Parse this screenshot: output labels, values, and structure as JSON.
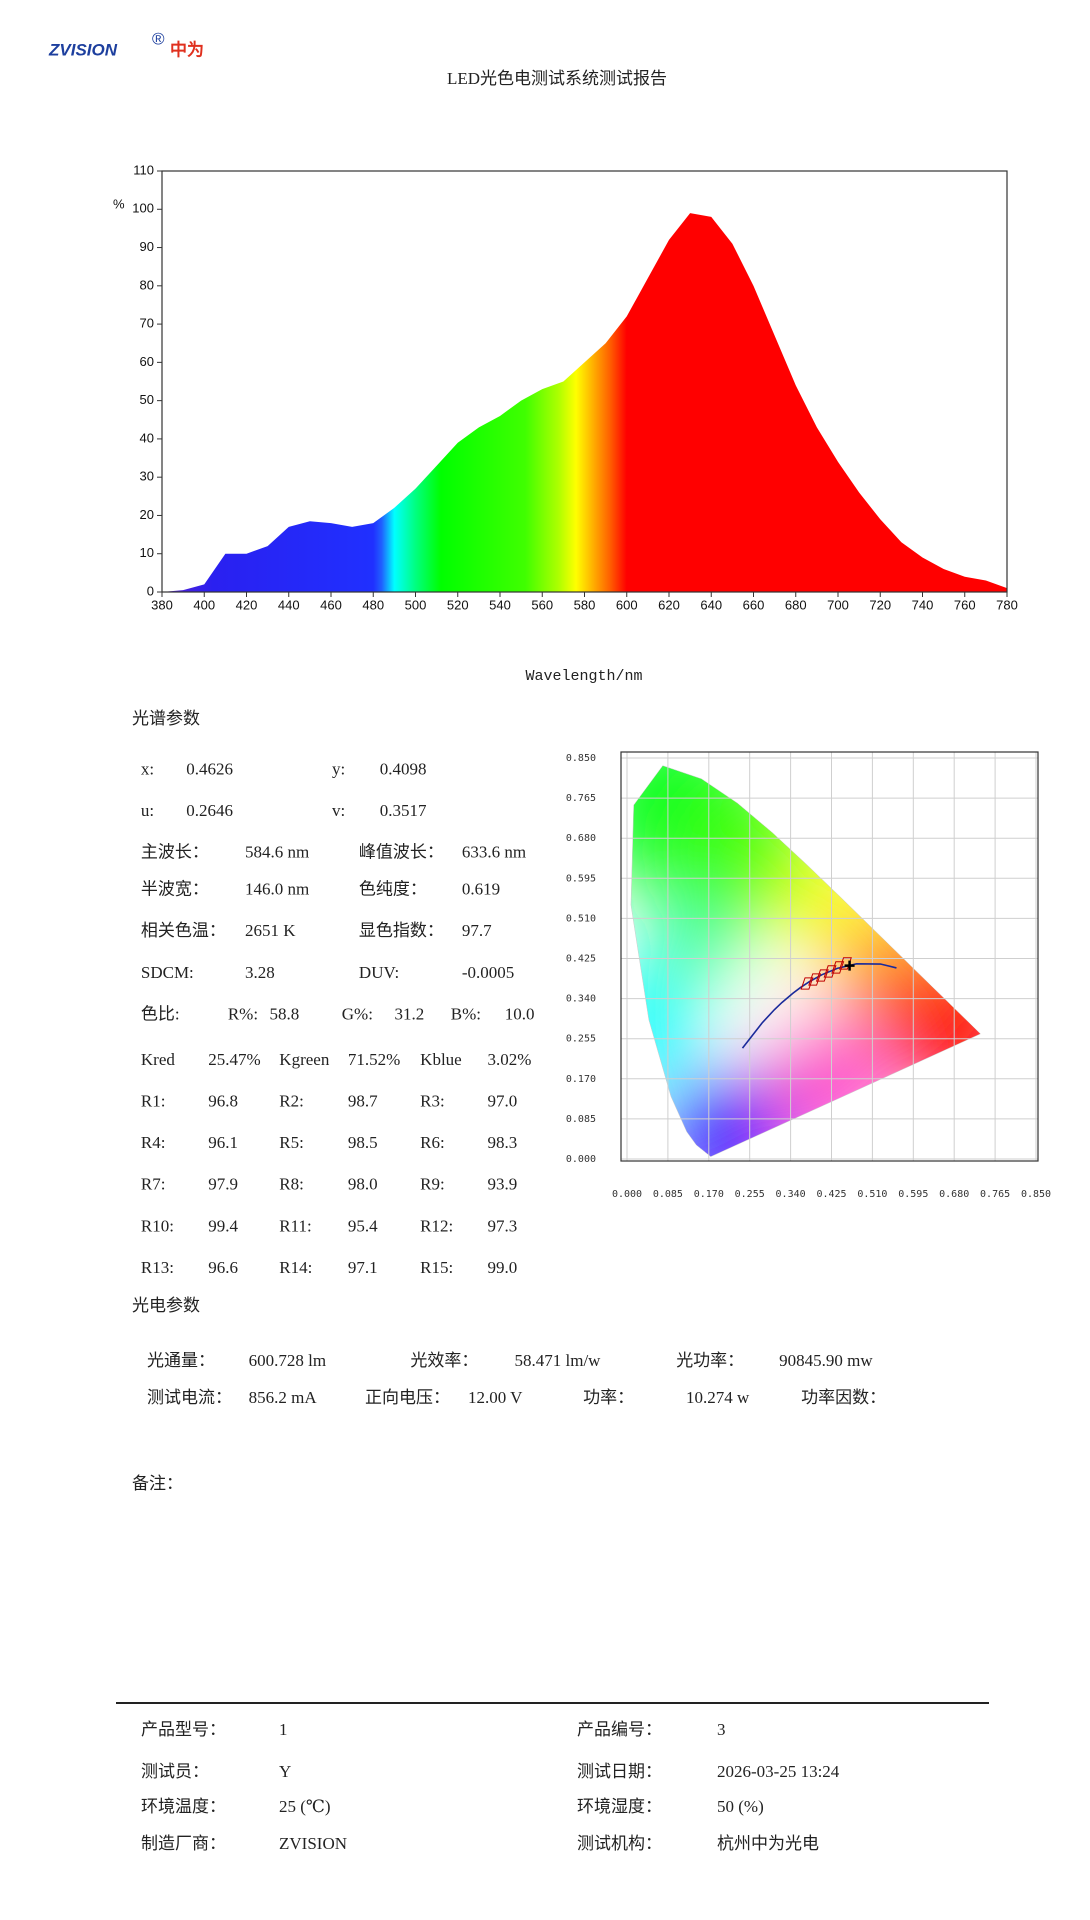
{
  "header": {
    "logo": "ZVISION",
    "trademark": "®",
    "logo_cn": "中为",
    "title": "LED光色电测试系统测试报告"
  },
  "chart_data": [
    {
      "type": "area",
      "ylabel": "%",
      "xlabel": "Wavelength/nm",
      "x": [
        380,
        390,
        400,
        410,
        420,
        430,
        440,
        450,
        460,
        470,
        480,
        490,
        500,
        510,
        520,
        530,
        540,
        550,
        560,
        570,
        580,
        590,
        600,
        610,
        620,
        630,
        640,
        650,
        660,
        670,
        680,
        690,
        700,
        710,
        720,
        730,
        740,
        750,
        760,
        770,
        780
      ],
      "values": [
        0,
        0.5,
        2,
        10,
        10,
        12,
        17,
        18.5,
        18,
        17,
        18,
        22,
        27,
        33,
        39,
        43,
        46,
        50,
        53,
        55,
        60,
        65,
        72,
        82,
        92,
        99,
        98,
        91,
        80,
        67,
        54,
        43,
        34,
        26,
        19,
        13,
        9,
        6,
        4,
        3,
        1
      ],
      "xlim": [
        380,
        780
      ],
      "ylim": [
        0,
        110
      ],
      "xticks": [
        380,
        400,
        420,
        440,
        460,
        480,
        500,
        520,
        540,
        560,
        580,
        600,
        620,
        640,
        660,
        680,
        700,
        720,
        740,
        760,
        780
      ],
      "yticks": [
        0,
        10,
        20,
        30,
        40,
        50,
        60,
        70,
        80,
        90,
        100,
        110
      ],
      "grid": false
    },
    {
      "type": "scatter",
      "x": [
        0.4626
      ],
      "values": [
        0.4098
      ],
      "color": "#000000",
      "grid": true,
      "xlim": [
        0,
        0.85
      ],
      "ylim": [
        0,
        0.85
      ],
      "xticks": [
        {
          "value": 0,
          "label": "0.000"
        },
        {
          "value": 0.085,
          "label": "0.085"
        },
        {
          "value": 0.17,
          "label": "0.170"
        },
        {
          "value": 0.255,
          "label": "0.255"
        },
        {
          "value": 0.34,
          "label": "0.340"
        },
        {
          "value": 0.425,
          "label": "0.425"
        },
        {
          "value": 0.51,
          "label": "0.510"
        },
        {
          "value": 0.595,
          "label": "0.595"
        },
        {
          "value": 0.68,
          "label": "0.680"
        },
        {
          "value": 0.765,
          "label": "0.765"
        },
        {
          "value": 0.85,
          "label": "0.850"
        }
      ],
      "yticks": [
        {
          "value": 0,
          "label": "0.000"
        },
        {
          "value": 0.085,
          "label": "0.085"
        },
        {
          "value": 0.17,
          "label": "0.170"
        },
        {
          "value": 0.255,
          "label": "0.255"
        },
        {
          "value": 0.34,
          "label": "0.340"
        },
        {
          "value": 0.425,
          "label": "0.425"
        },
        {
          "value": 0.51,
          "label": "0.510"
        },
        {
          "value": 0.595,
          "label": "0.595"
        },
        {
          "value": 0.68,
          "label": "0.680"
        },
        {
          "value": 0.765,
          "label": "0.765"
        },
        {
          "value": 0.85,
          "label": "0.850"
        }
      ]
    }
  ],
  "spectral": {
    "title": "光谱参数",
    "rows": [
      [
        "x:",
        "0.4626",
        "y:",
        "0.4098"
      ],
      [
        "u:",
        "0.2646",
        "v:",
        "0.3517"
      ],
      [
        "主波长：",
        "584.6 nm",
        "峰值波长：",
        "633.6 nm"
      ],
      [
        "半波宽：",
        "146.0 nm",
        "色纯度：",
        "0.619"
      ],
      [
        "相关色温：",
        "2651 K",
        "显色指数：",
        "97.7"
      ],
      [
        "SDCM:",
        "3.28",
        "DUV:",
        "-0.0005"
      ],
      [
        "色比:",
        "R%:",
        "58.8",
        "G%:",
        "31.2",
        "B%:",
        "10.0"
      ],
      [
        "Kred",
        "25.47%",
        "Kgreen",
        "71.52%",
        "Kblue",
        "3.02%"
      ],
      [
        "R1:",
        "96.8",
        "R2:",
        "98.7",
        "R3:",
        "97.0"
      ],
      [
        "R4:",
        "96.1",
        "R5:",
        "98.5",
        "R6:",
        "98.3"
      ],
      [
        "R7:",
        "97.9",
        "R8:",
        "98.0",
        "R9:",
        "93.9"
      ],
      [
        "R10:",
        "99.4",
        "R11:",
        "95.4",
        "R12:",
        "97.3"
      ],
      [
        "R13:",
        "96.6",
        "R14:",
        "97.1",
        "R15:",
        "99.0"
      ]
    ]
  },
  "photoelectric": {
    "title": "光电参数",
    "rows": [
      [
        "光通量：",
        "600.728 lm",
        "光效率：",
        "58.471 lm/w",
        "光功率：",
        "90845.90 mw"
      ],
      [
        "测试电流：",
        "856.2 mA",
        "正向电压：",
        "12.00 V",
        "功率：",
        "10.274 w",
        "功率因数："
      ]
    ]
  },
  "remarks": {
    "title": "备注："
  },
  "footer": {
    "rows": [
      [
        "产品型号：",
        "1",
        "产品编号：",
        "3"
      ],
      [
        "测试员：",
        "Y",
        "测试日期：",
        "2026-03-25 13:24"
      ],
      [
        "环境温度：",
        "25 (℃)",
        "环境湿度：",
        "50 (%)"
      ],
      [
        "制造厂商：",
        "ZVISION",
        "测试机构：",
        "杭州中为光电"
      ]
    ]
  }
}
